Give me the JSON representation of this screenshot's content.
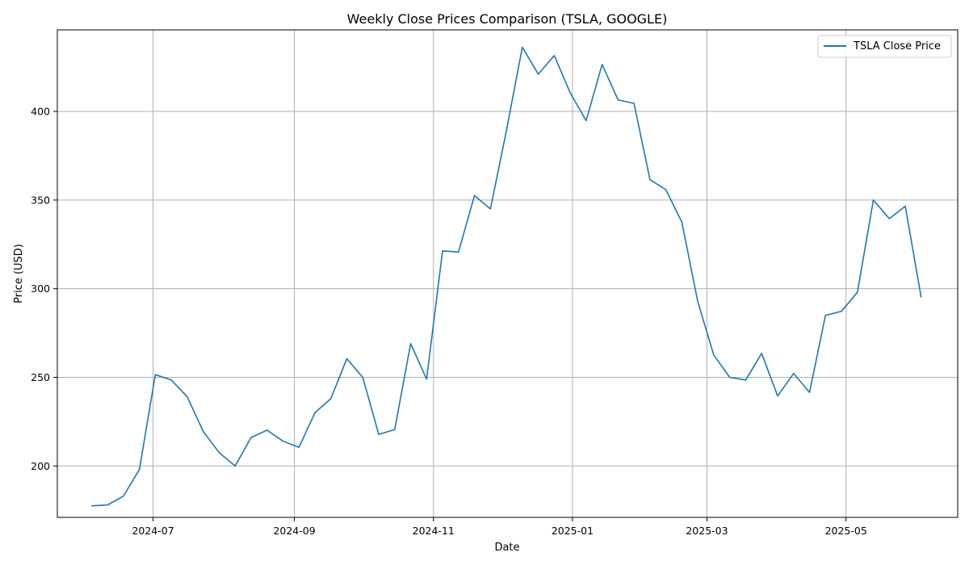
{
  "chart_data": {
    "type": "line",
    "title": "Weekly Close Prices Comparison (TSLA, GOOGLE)",
    "xlabel": "Date",
    "ylabel": "Price (USD)",
    "grid": true,
    "legend_position": "top-right",
    "x_tick_labels": [
      "2024-07",
      "2024-09",
      "2024-11",
      "2025-01",
      "2025-03",
      "2025-05"
    ],
    "x_ticks": [
      "2024-07-01",
      "2024-09-01",
      "2024-11-01",
      "2025-01-01",
      "2025-03-01",
      "2025-05-01"
    ],
    "y_ticks": [
      200,
      250,
      300,
      350,
      400
    ],
    "y_tick_labels": [
      "200",
      "250",
      "300",
      "350",
      "400"
    ],
    "xlim": [
      "2024-05-20",
      "2025-06-19"
    ],
    "ylim": [
      171,
      446
    ],
    "series": [
      {
        "name": "TSLA Close Price",
        "color": "#1f77b4",
        "x": [
          "2024-06-04",
          "2024-06-11",
          "2024-06-18",
          "2024-06-25",
          "2024-07-02",
          "2024-07-09",
          "2024-07-16",
          "2024-07-23",
          "2024-07-30",
          "2024-08-06",
          "2024-08-13",
          "2024-08-20",
          "2024-08-27",
          "2024-09-03",
          "2024-09-10",
          "2024-09-17",
          "2024-09-24",
          "2024-10-01",
          "2024-10-08",
          "2024-10-15",
          "2024-10-22",
          "2024-10-29",
          "2024-11-05",
          "2024-11-12",
          "2024-11-19",
          "2024-11-26",
          "2024-12-03",
          "2024-12-10",
          "2024-12-17",
          "2024-12-24",
          "2024-12-31",
          "2025-01-07",
          "2025-01-14",
          "2025-01-21",
          "2025-01-28",
          "2025-02-04",
          "2025-02-11",
          "2025-02-18",
          "2025-02-25",
          "2025-03-04",
          "2025-03-11",
          "2025-03-18",
          "2025-03-25",
          "2025-04-01",
          "2025-04-08",
          "2025-04-15",
          "2025-04-22",
          "2025-04-29",
          "2025-05-06",
          "2025-05-13",
          "2025-05-20",
          "2025-05-27",
          "2025-06-03"
        ],
        "values": [
          177.5,
          178.0,
          183.0,
          198.0,
          251.5,
          248.5,
          239.0,
          219.5,
          207.5,
          200.0,
          216.0,
          220.2,
          214.0,
          210.5,
          230.0,
          238.0,
          260.5,
          250.0,
          217.8,
          220.5,
          269.0,
          249.0,
          321.3,
          320.7,
          352.5,
          345.0,
          389.0,
          436.2,
          421.0,
          431.5,
          410.5,
          394.8,
          426.5,
          406.5,
          404.5,
          361.5,
          355.8,
          337.5,
          292.5,
          262.5,
          250.0,
          248.5,
          263.5,
          239.5,
          252.2,
          241.5,
          285.0,
          287.2,
          298.0,
          350.0,
          339.5,
          346.5,
          295.0
        ]
      }
    ]
  }
}
